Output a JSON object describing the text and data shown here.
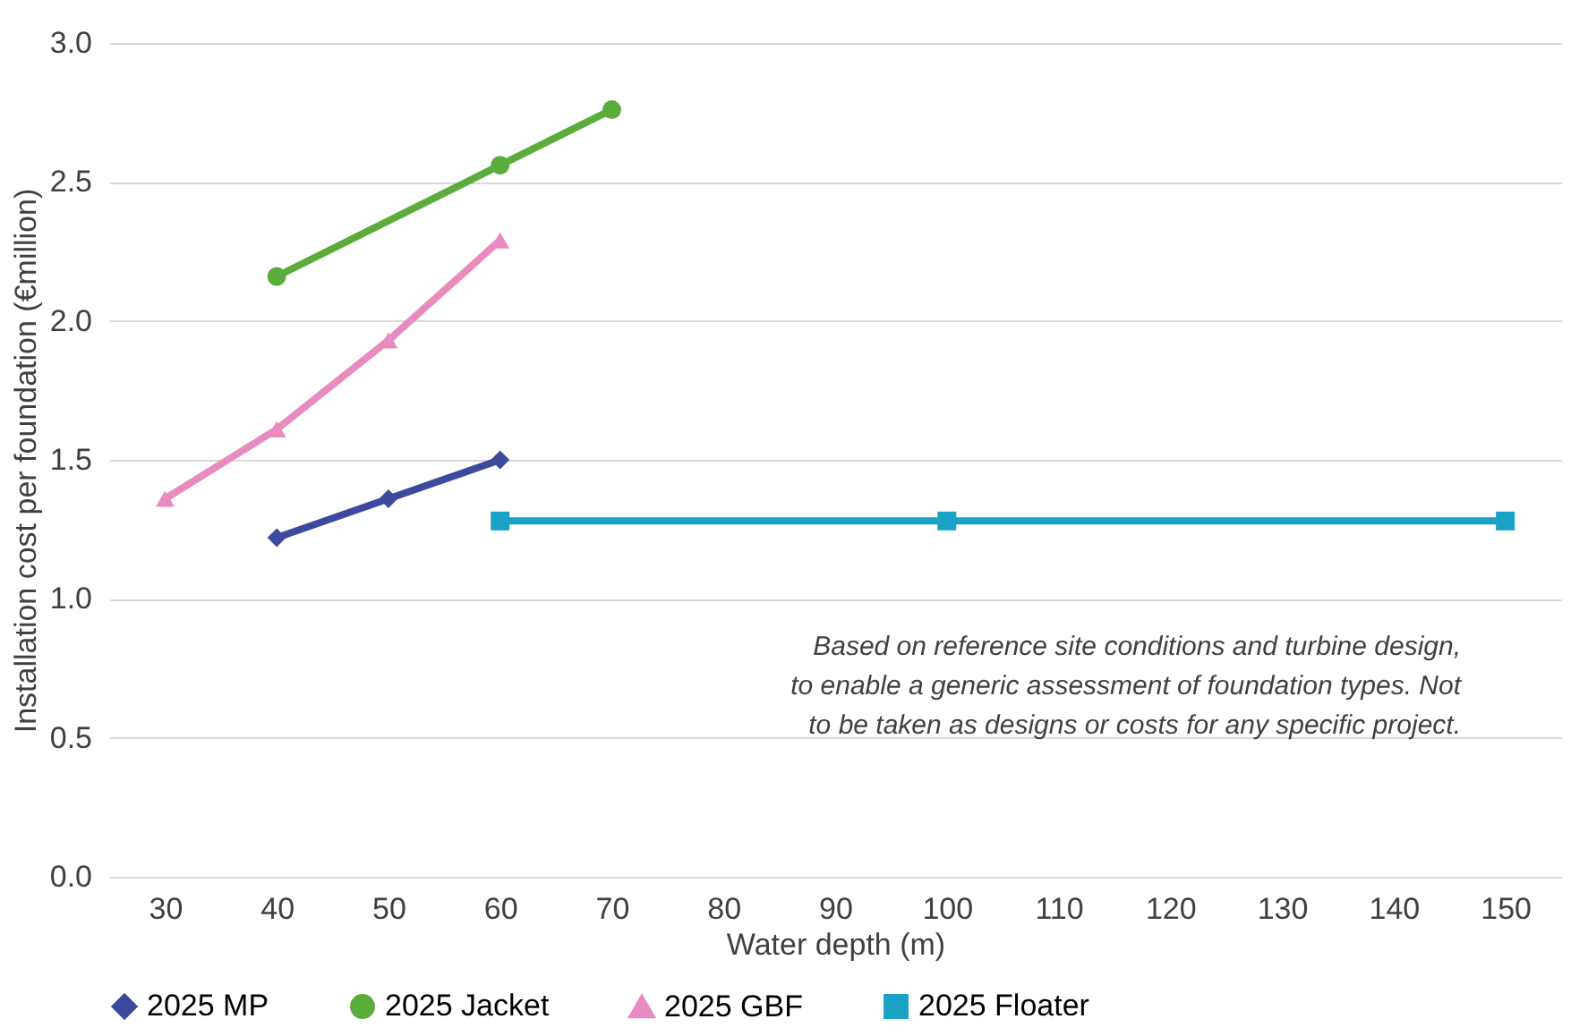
{
  "chart_data": {
    "type": "line",
    "xlabel": "Water depth (m)",
    "ylabel": "Installation cost per foundation (€million)",
    "xlim": [
      25,
      155
    ],
    "xticks": [
      30,
      40,
      50,
      60,
      70,
      80,
      90,
      100,
      110,
      120,
      130,
      140,
      150
    ],
    "ylim": [
      0,
      3
    ],
    "yticks": [
      {
        "value": 0,
        "label": "0.0"
      },
      0.5,
      {
        "value": 1,
        "label": "1.0"
      },
      1.5,
      {
        "value": 2,
        "label": "2.0"
      },
      2.5,
      {
        "value": 3,
        "label": "3.0"
      }
    ],
    "grid": "y",
    "legend": "bottom",
    "annotations": [
      "Based on reference site  conditions and turbine design,\nto enable a generic assessment of foundation types. Not\nto be taken as designs or costs for any specific project."
    ],
    "series": [
      {
        "name": "2025 MP",
        "color": "#3c4a9e",
        "marker": "diamond",
        "x": [
          40,
          50,
          60
        ],
        "values": [
          1.22,
          1.36,
          1.5
        ]
      },
      {
        "name": "2025 Jacket",
        "color": "#5aad3a",
        "marker": "circle",
        "x": [
          40,
          60,
          70
        ],
        "values": [
          2.16,
          2.56,
          2.76
        ]
      },
      {
        "name": "2025 GBF",
        "color": "#e88cc0",
        "marker": "triangle",
        "x": [
          30,
          40,
          50,
          60
        ],
        "values": [
          1.36,
          1.61,
          1.93,
          2.29
        ]
      },
      {
        "name": "2025 Floater",
        "color": "#1aa2c4",
        "marker": "square",
        "x": [
          60,
          100,
          150
        ],
        "values": [
          1.28,
          1.28,
          1.28
        ]
      }
    ]
  }
}
